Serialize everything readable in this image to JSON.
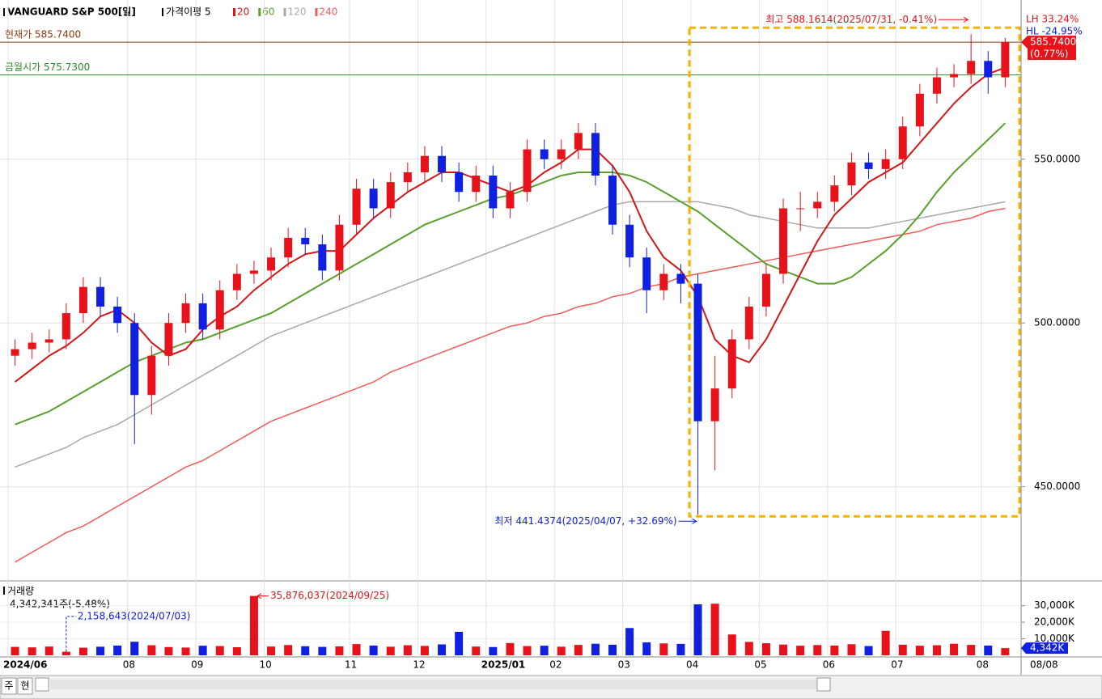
{
  "chart_data": {
    "type": "candlestick",
    "title": "VANGUARD S&P 500[일]",
    "indicator_label": "가격이평 5",
    "categories": [
      "2024/06",
      null,
      null,
      null,
      null,
      null,
      null,
      "08",
      null,
      null,
      null,
      "09",
      null,
      null,
      null,
      "10",
      null,
      null,
      null,
      null,
      "11",
      null,
      null,
      null,
      "12",
      null,
      null,
      null,
      "2025/01",
      null,
      null,
      null,
      "02",
      null,
      null,
      null,
      "03",
      null,
      null,
      null,
      "04",
      null,
      null,
      null,
      "05",
      null,
      null,
      null,
      "06",
      null,
      null,
      null,
      "07",
      null,
      null,
      null,
      null,
      "08",
      null
    ],
    "candles": {
      "open": [
        490,
        492,
        494,
        495,
        503,
        511,
        505,
        500,
        478,
        490,
        500,
        506,
        498,
        510,
        515,
        516,
        520,
        526,
        524,
        516,
        530,
        541,
        535,
        543,
        546,
        551,
        546,
        540,
        545,
        535,
        540,
        553,
        550,
        553,
        558,
        545,
        530,
        520,
        510,
        515,
        512,
        470,
        480,
        495,
        505,
        515,
        535,
        535,
        537,
        542,
        549,
        547,
        550,
        560,
        570,
        575,
        576,
        580,
        575
      ],
      "high": [
        495,
        497,
        498,
        506,
        514,
        514,
        508,
        503,
        493,
        503,
        509,
        509,
        513,
        518,
        519,
        523,
        529,
        529,
        527,
        533,
        544,
        544,
        546,
        549,
        554,
        554,
        549,
        548,
        548,
        543,
        556,
        556,
        556,
        561,
        561,
        548,
        533,
        523,
        518,
        518,
        515,
        490,
        498,
        508,
        518,
        538,
        540,
        540,
        545,
        552,
        552,
        553,
        563,
        573,
        578,
        579,
        588.1614,
        583,
        587
      ],
      "low": [
        487,
        489,
        491,
        492,
        500,
        502,
        497,
        463,
        472,
        487,
        497,
        495,
        495,
        507,
        512,
        513,
        517,
        521,
        513,
        513,
        527,
        532,
        532,
        540,
        543,
        543,
        537,
        537,
        532,
        532,
        537,
        547,
        547,
        550,
        542,
        527,
        517,
        503,
        507,
        506,
        441.4374,
        455,
        477,
        492,
        502,
        512,
        528,
        532,
        534,
        539,
        544,
        544,
        547,
        557,
        567,
        572,
        573,
        570,
        572
      ],
      "close": [
        492,
        494,
        495,
        503,
        511,
        505,
        500,
        478,
        490,
        500,
        506,
        498,
        510,
        515,
        516,
        520,
        526,
        524,
        516,
        530,
        541,
        535,
        543,
        546,
        551,
        546,
        540,
        545,
        535,
        540,
        553,
        550,
        553,
        558,
        545,
        530,
        520,
        510,
        515,
        512,
        470,
        480,
        495,
        505,
        515,
        535,
        535,
        537,
        542,
        549,
        547,
        550,
        560,
        570,
        575,
        576,
        580,
        575,
        585.74
      ],
      "up_color": "#e8121b",
      "down_color": "#1020e0"
    },
    "series": [
      {
        "name": "20",
        "color": "#d41616",
        "values": [
          482,
          486,
          490,
          493,
          497,
          502,
          504,
          500,
          494,
          490,
          492,
          498,
          502,
          505,
          510,
          514,
          518,
          521,
          522,
          522,
          527,
          532,
          536,
          540,
          543,
          546,
          546,
          544,
          542,
          540,
          542,
          546,
          549,
          553,
          553,
          548,
          540,
          528,
          520,
          516,
          508,
          495,
          490,
          488,
          495,
          505,
          515,
          525,
          533,
          538,
          543,
          546,
          549,
          555,
          561,
          567,
          572,
          576,
          578
        ]
      },
      {
        "name": "60",
        "color": "#5aa02c",
        "values": [
          469,
          471,
          473,
          476,
          479,
          482,
          485,
          488,
          490,
          492,
          494,
          495,
          497,
          499,
          501,
          503,
          506,
          509,
          512,
          515,
          518,
          521,
          524,
          527,
          530,
          532,
          534,
          536,
          538,
          539,
          541,
          543,
          545,
          546,
          546,
          546,
          545,
          543,
          540,
          537,
          534,
          530,
          526,
          522,
          518,
          516,
          514,
          512,
          512,
          514,
          518,
          522,
          527,
          533,
          540,
          546,
          551,
          556,
          561
        ]
      },
      {
        "name": "120",
        "color": "#a8a8a8",
        "values": [
          456,
          458,
          460,
          462,
          465,
          467,
          469,
          472,
          475,
          478,
          481,
          484,
          487,
          490,
          493,
          496,
          498,
          500,
          502,
          504,
          506,
          508,
          510,
          512,
          514,
          516,
          518,
          520,
          522,
          524,
          526,
          528,
          530,
          532,
          534,
          536,
          537,
          537,
          537,
          537,
          537,
          536,
          535,
          533,
          532,
          531,
          530,
          529,
          529,
          529,
          529,
          530,
          531,
          532,
          533,
          534,
          535,
          536,
          537
        ]
      },
      {
        "name": "240",
        "color": "#f05a5a",
        "values": [
          427,
          430,
          433,
          436,
          438,
          441,
          444,
          447,
          450,
          453,
          456,
          458,
          461,
          464,
          467,
          470,
          472,
          474,
          476,
          478,
          480,
          482,
          485,
          487,
          489,
          491,
          493,
          495,
          497,
          499,
          500,
          502,
          503,
          505,
          506,
          508,
          509,
          511,
          512,
          514,
          515,
          516,
          517,
          518,
          519,
          520,
          521,
          522,
          523,
          524,
          525,
          526,
          527,
          528,
          530,
          531,
          532,
          534,
          535
        ]
      }
    ],
    "ylim": [
      422,
      598.6
    ],
    "yticks": [
      {
        "value": 450,
        "label": "450.0000"
      },
      {
        "value": 500,
        "label": "500.0000"
      },
      {
        "value": 550,
        "label": "550.0000"
      }
    ],
    "grid": true,
    "current_price": {
      "value": 585.74,
      "label": "현재가 585.7400",
      "marker": "585.7400",
      "change": "(0.77%)",
      "color": "#8b3a0e"
    },
    "month_open": {
      "value": 575.73,
      "label": "금월시가 575.7300",
      "color": "#2a8a2a"
    },
    "high_note": {
      "value": 588.1614,
      "label": "최고 588.1614(2025/07/31, -0.41%)"
    },
    "low_note": {
      "value": 441.4374,
      "label": "최저 441.4374(2025/04/07, +32.69%)"
    },
    "stats": [
      "LH  33.24%",
      "HL -24.95%"
    ],
    "volume": {
      "label": "거래량",
      "summary": "4,342,341주(-5.48%)",
      "values": [
        5100000,
        4800000,
        5300000,
        2158643,
        4600000,
        5200000,
        5900000,
        8200000,
        6100000,
        5000000,
        4700000,
        5800000,
        5600000,
        4900000,
        35876037,
        5300000,
        6200000,
        5500000,
        5100000,
        5400000,
        6800000,
        5900000,
        5200000,
        6100000,
        5700000,
        6600000,
        14200000,
        5300000,
        5000000,
        7400000,
        5600000,
        5800000,
        5200000,
        6300000,
        7000000,
        6400000,
        16500000,
        7800000,
        7200000,
        6900000,
        30800000,
        31200000,
        12600000,
        8100000,
        7300000,
        6500000,
        5800000,
        6200000,
        5900000,
        6700000,
        5600000,
        14800000,
        6400000,
        5800000,
        6100000,
        7000000,
        6300000,
        5900000,
        4342341
      ],
      "value_labels": [
        null,
        null,
        null,
        null,
        null,
        null,
        null,
        null,
        null,
        null,
        null,
        null,
        null,
        null,
        null,
        null,
        null,
        null,
        null,
        null,
        null,
        null,
        null,
        null,
        null,
        null,
        null,
        null,
        null,
        null,
        null,
        null,
        null,
        null,
        null,
        null,
        null,
        null,
        null,
        null,
        null,
        null,
        null,
        null,
        null,
        null,
        null,
        null,
        null,
        null,
        null,
        null,
        null,
        null,
        null,
        null,
        null,
        null,
        "4,342K"
      ],
      "max_note": "35,876,037(2024/09/25)",
      "min_note": "2,158,643(2024/07/03)",
      "ylim": [
        0,
        45000000
      ],
      "yticks": [
        {
          "value": 10000000,
          "label": "10,000K"
        },
        {
          "value": 20000000,
          "label": "20,000K"
        },
        {
          "value": 30000000,
          "label": "30,000K"
        }
      ]
    },
    "last_date": "08/08",
    "toolbar": [
      "주",
      "현"
    ]
  }
}
